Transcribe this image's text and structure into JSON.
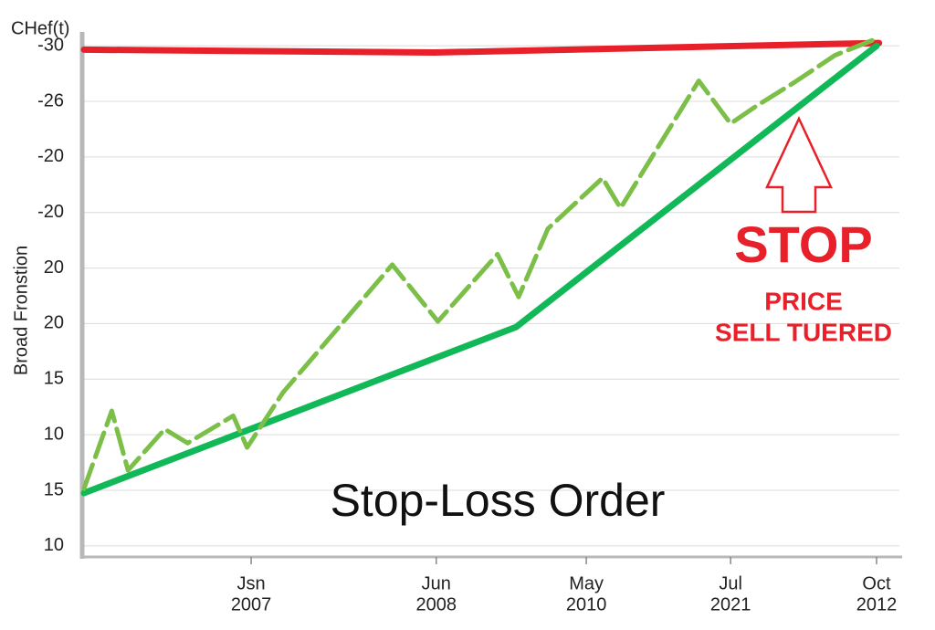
{
  "chart_data": {
    "type": "line",
    "title": "Stop-Loss Order",
    "y_label": "Broad Fronstion",
    "y_unit_label": "CHef(t)",
    "annotations": [
      "STOP",
      "PRICE",
      "SELL TUERED"
    ],
    "xlim": [
      0,
      100
    ],
    "ylim": [
      -0.2,
      9.2
    ],
    "grid": true,
    "xticks": [
      {
        "value": 20.5,
        "label": [
          "Jsn",
          "2007"
        ]
      },
      {
        "value": 43.2,
        "label": [
          "Jun",
          "2008"
        ]
      },
      {
        "value": 61.6,
        "label": [
          "May",
          "2010"
        ]
      },
      {
        "value": 79.3,
        "label": [
          "Jul",
          "2021"
        ]
      },
      {
        "value": 97.2,
        "label": [
          "Oct",
          "2012"
        ]
      }
    ],
    "yticks": [
      {
        "value": 0,
        "label": "10"
      },
      {
        "value": 1,
        "label": "15"
      },
      {
        "value": 2,
        "label": "10"
      },
      {
        "value": 3,
        "label": "15"
      },
      {
        "value": 4,
        "label": "20"
      },
      {
        "value": 5,
        "label": "20"
      },
      {
        "value": 6,
        "label": "-20"
      },
      {
        "value": 7,
        "label": "-20"
      },
      {
        "value": 8,
        "label": "-26"
      },
      {
        "value": 9,
        "label": "-30"
      }
    ],
    "series": [
      {
        "color": "#e8202a",
        "style": "solid",
        "x": [
          0,
          43,
          97.5
        ],
        "values": [
          8.93,
          8.88,
          9.05
        ]
      },
      {
        "color": "#10b857",
        "style": "solid",
        "x": [
          0,
          53,
          97.2
        ],
        "values": [
          0.95,
          3.94,
          9.0
        ]
      },
      {
        "color": "#7cbf48",
        "style": "dashed",
        "x": [
          0,
          3.4,
          5.4,
          9.9,
          12.7,
          18.3,
          20.0,
          24.4,
          37.8,
          43.4,
          50.7,
          53.3,
          56.9,
          63.6,
          65.8,
          75.4,
          79.3,
          82.6,
          87.1,
          92.1,
          97.2
        ],
        "values": [
          1.03,
          2.43,
          1.36,
          2.1,
          1.85,
          2.34,
          1.77,
          2.76,
          5.06,
          4.04,
          5.25,
          4.48,
          5.71,
          6.62,
          6.08,
          8.37,
          7.6,
          7.93,
          8.34,
          8.83,
          9.13
        ]
      }
    ]
  }
}
